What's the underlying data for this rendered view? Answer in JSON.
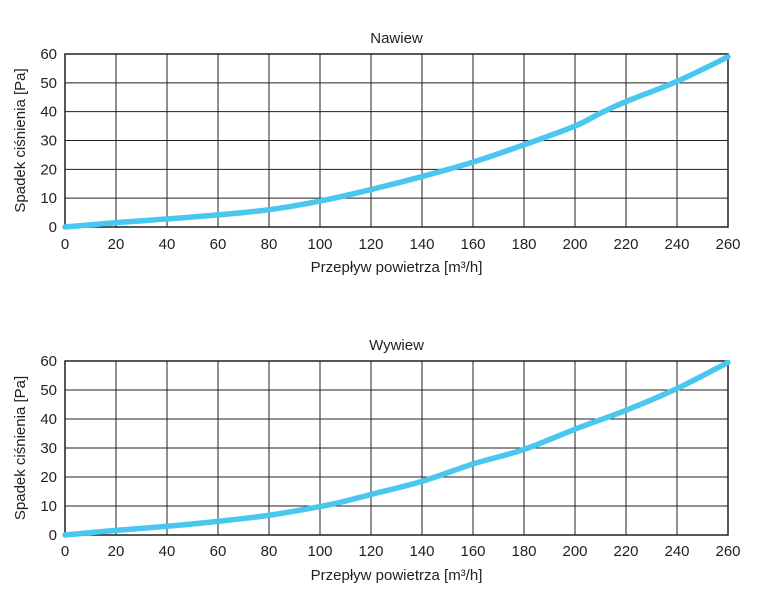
{
  "chart_data": [
    {
      "type": "line",
      "title": "Nawiew",
      "xlabel": "Przepływ powietrza [m³/h]",
      "ylabel": "Spadek ciśnienia [Pa]",
      "xlim": [
        0,
        260
      ],
      "ylim": [
        0,
        60
      ],
      "grid": true,
      "xticks": [
        "0",
        "20",
        "40",
        "60",
        "80",
        "100",
        "120",
        "140",
        "160",
        "180",
        "200",
        "220",
        "240",
        "260"
      ],
      "yticks": [
        "0",
        "10",
        "20",
        "30",
        "40",
        "50",
        "60"
      ],
      "series": [
        {
          "name": "Nawiew",
          "color": "#49c7ef",
          "x": [
            0,
            20,
            40,
            60,
            80,
            100,
            120,
            140,
            160,
            180,
            200,
            210,
            220,
            240,
            260
          ],
          "y": [
            0,
            1.5,
            2.8,
            4.2,
            6,
            9,
            13,
            17.5,
            22.5,
            28.5,
            35,
            39.5,
            43.5,
            50.5,
            59
          ]
        }
      ]
    },
    {
      "type": "line",
      "title": "Wywiew",
      "xlabel": "Przepływ powietrza [m³/h]",
      "ylabel": "Spadek ciśnienia [Pa]",
      "xlim": [
        0,
        260
      ],
      "ylim": [
        0,
        60
      ],
      "grid": true,
      "xticks": [
        "0",
        "20",
        "40",
        "60",
        "80",
        "100",
        "120",
        "140",
        "160",
        "180",
        "200",
        "220",
        "240",
        "260"
      ],
      "yticks": [
        "0",
        "10",
        "20",
        "30",
        "40",
        "50",
        "60"
      ],
      "series": [
        {
          "name": "Wywiew",
          "color": "#49c7ef",
          "x": [
            0,
            20,
            40,
            60,
            80,
            100,
            110,
            120,
            140,
            160,
            180,
            200,
            220,
            240,
            260
          ],
          "y": [
            0,
            1.6,
            3,
            4.7,
            6.8,
            9.8,
            11.7,
            14,
            18.5,
            24.5,
            29.5,
            36.5,
            43,
            50.5,
            59.5
          ]
        }
      ]
    }
  ]
}
